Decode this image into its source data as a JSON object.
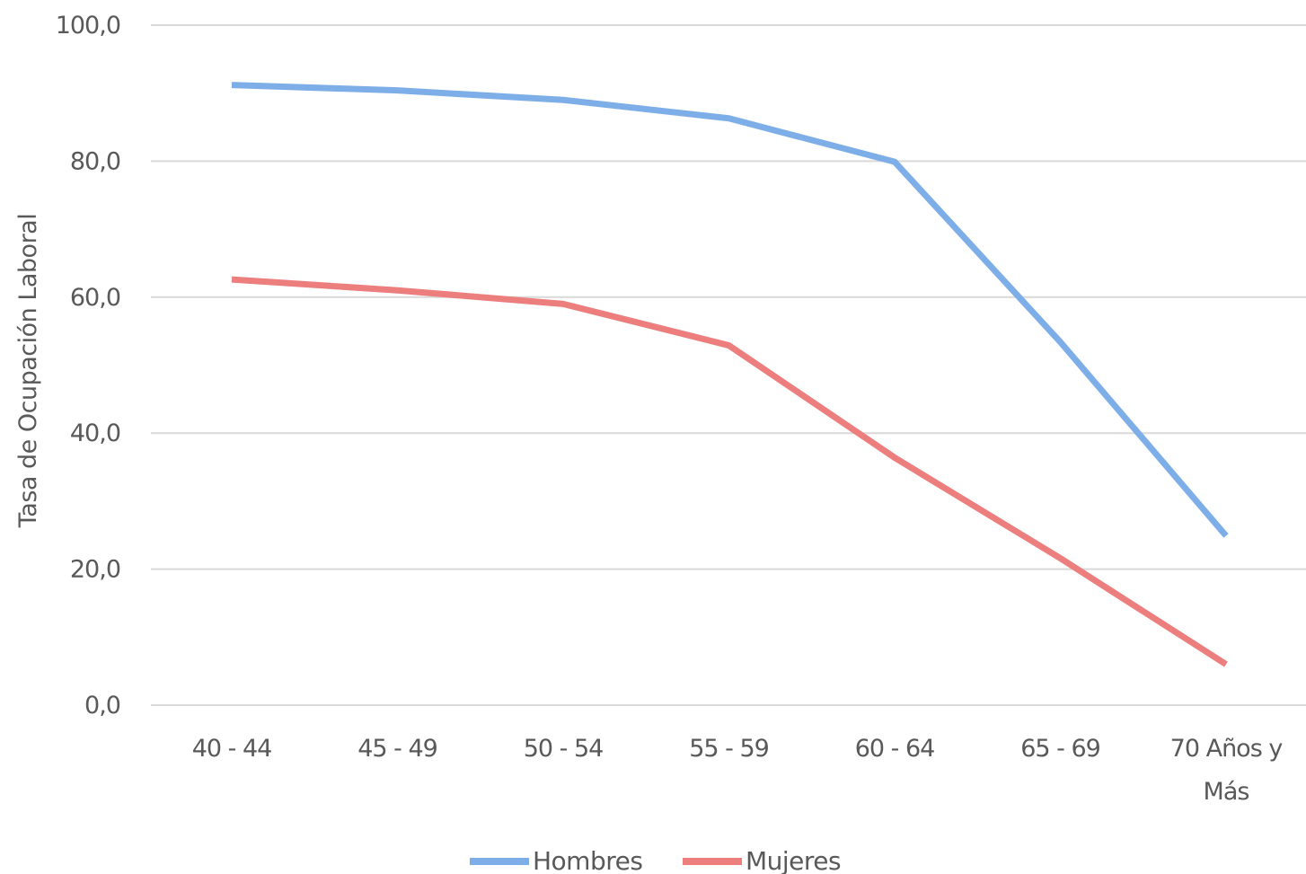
{
  "chart_data": {
    "type": "line",
    "title": "",
    "xlabel": "",
    "ylabel": "Tasa de Ocupación  Laboral",
    "ylim": [
      0,
      100
    ],
    "yticks": [
      0,
      20,
      40,
      60,
      80,
      100
    ],
    "ytick_labels": [
      "0,0",
      "20,0",
      "40,0",
      "60,0",
      "80,0",
      "100,0"
    ],
    "categories": [
      [
        "40 - 44"
      ],
      [
        "45 - 49"
      ],
      [
        "50 - 54"
      ],
      [
        "55 - 59"
      ],
      [
        "60 - 64"
      ],
      [
        "65 - 69"
      ],
      [
        "70 Años y",
        "Más"
      ]
    ],
    "grid": true,
    "legend_position": "bottom",
    "series": [
      {
        "name": "Hombres",
        "color": "#7eaee8",
        "values": [
          91.2,
          90.4,
          89.0,
          86.3,
          79.9,
          53.4,
          24.9
        ]
      },
      {
        "name": "Mujeres",
        "color": "#ec7e7e",
        "values": [
          62.6,
          61.0,
          59.0,
          52.9,
          36.4,
          21.6,
          6.0
        ]
      }
    ]
  }
}
